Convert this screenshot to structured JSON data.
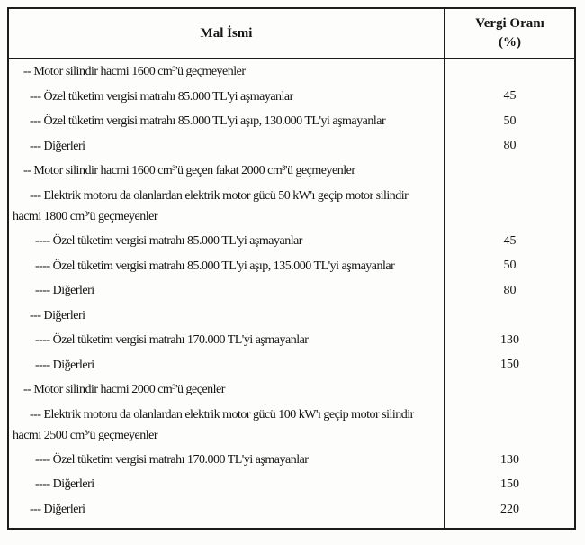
{
  "table": {
    "header": {
      "goods_column": "Mal İsmi",
      "rate_column_line1": "Vergi Oranı",
      "rate_column_line2": "(%)"
    },
    "rows": [
      {
        "text": "-- Motor silindir hacmi 1600 cm³'ü geçmeyenler",
        "value": ""
      },
      {
        "text": "--- Özel tüketim vergisi matrahı 85.000 TL'yi aşmayanlar",
        "value": "45"
      },
      {
        "text": "--- Özel tüketim vergisi matrahı 85.000 TL'yi aşıp, 130.000 TL'yi aşmayanlar",
        "value": "50"
      },
      {
        "text": "--- Diğerleri",
        "value": "80"
      },
      {
        "text": "-- Motor silindir hacmi 1600 cm³'ü geçen fakat 2000 cm³'ü geçmeyenler",
        "value": ""
      },
      {
        "text": "--- Elektrik motoru da olanlardan elektrik motor gücü 50 kW'ı geçip motor silindir hacmi 1800 cm³'ü geçmeyenler",
        "value": ""
      },
      {
        "text": "---- Özel tüketim vergisi matrahı 85.000 TL'yi aşmayanlar",
        "value": "45"
      },
      {
        "text": "---- Özel tüketim vergisi matrahı 85.000 TL'yi aşıp, 135.000 TL'yi aşmayanlar",
        "value": "50"
      },
      {
        "text": "---- Diğerleri",
        "value": "80"
      },
      {
        "text": "--- Diğerleri",
        "value": ""
      },
      {
        "text": "---- Özel tüketim vergisi matrahı 170.000 TL'yi aşmayanlar",
        "value": "130"
      },
      {
        "text": "---- Diğerleri",
        "value": "150"
      },
      {
        "text": "-- Motor silindir hacmi 2000 cm³'ü geçenler",
        "value": ""
      },
      {
        "text": "--- Elektrik motoru da olanlardan elektrik motor gücü 100 kW'ı geçip motor silindir hacmi 2500 cm³'ü geçmeyenler",
        "value": ""
      },
      {
        "text": "---- Özel tüketim vergisi matrahı 170.000 TL'yi aşmayanlar",
        "value": "130"
      },
      {
        "text": "---- Diğerleri",
        "value": "150"
      },
      {
        "text": "--- Diğerleri",
        "value": "220"
      }
    ]
  },
  "colors": {
    "border": "#1c1c1c",
    "text": "#141414",
    "paper": "#fcfcfa"
  }
}
